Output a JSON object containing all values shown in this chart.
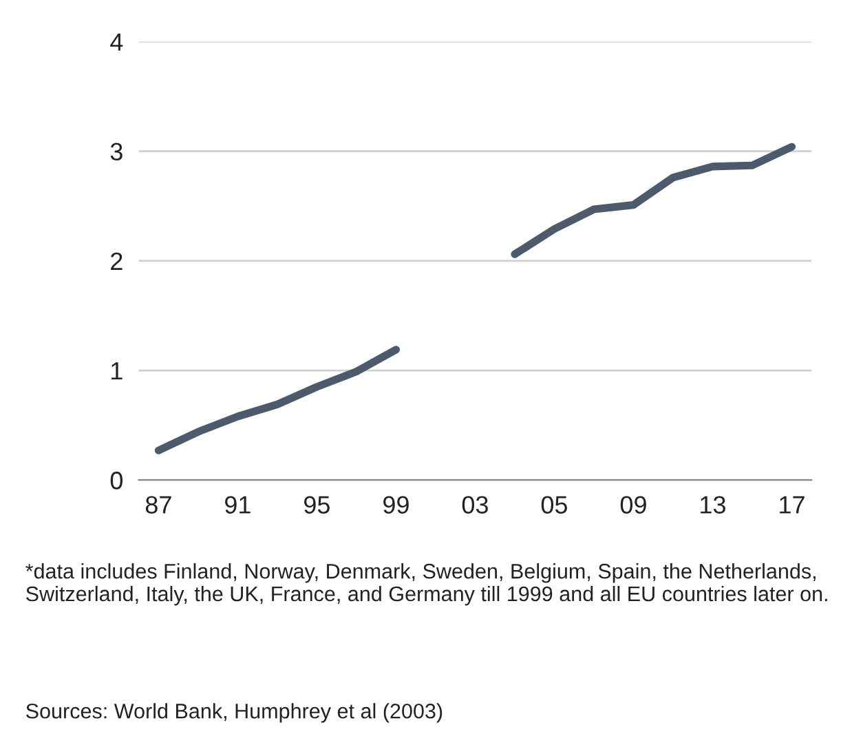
{
  "chart_data": {
    "type": "line",
    "categories": [
      "87",
      null,
      "91",
      null,
      "95",
      null,
      "99",
      null,
      "03",
      null,
      "05",
      null,
      "09",
      null,
      "13",
      null,
      "17"
    ],
    "series": [
      {
        "color": "#4b5b6b",
        "values": [
          0.27,
          0.44,
          0.58,
          0.69,
          0.85,
          0.99,
          1.19,
          null,
          null,
          2.06,
          2.29,
          2.47,
          2.51,
          2.76,
          2.86,
          2.87,
          3.04
        ]
      }
    ],
    "ylim": [
      0,
      4
    ],
    "yticks": [
      0,
      1,
      2,
      3,
      4
    ],
    "grid": "y",
    "legend": false,
    "annotations": [
      "*data includes Finland, Norway, Denmark, Sweden, Belgium, Spain, the Netherlands, Switzerland, Italy, the UK, France, and Germany till 1999 and all EU countries later on.",
      "Sources: World Bank, Humphrey et al (2003)"
    ]
  }
}
